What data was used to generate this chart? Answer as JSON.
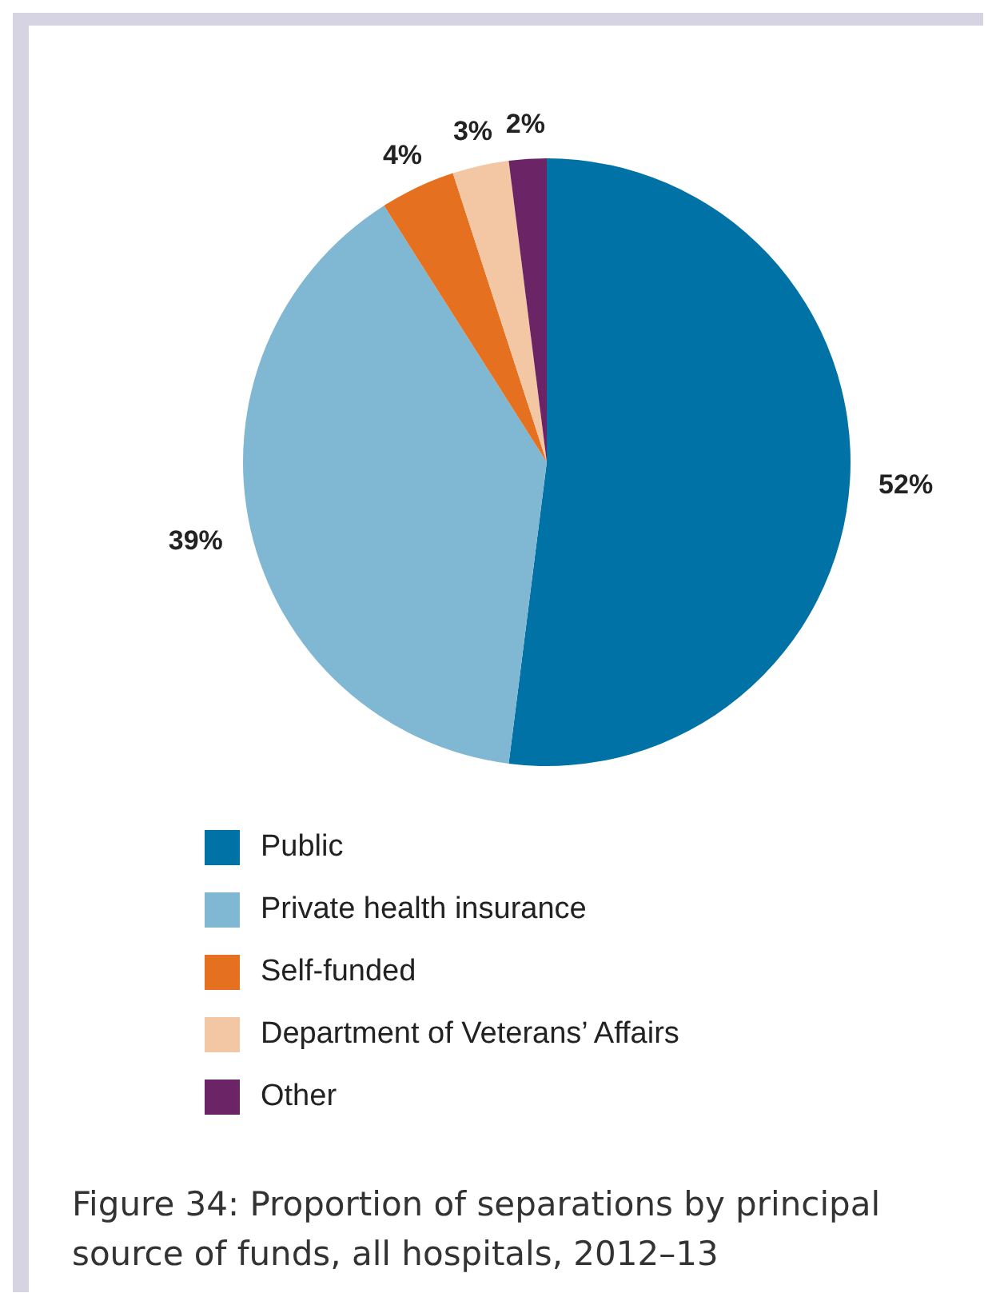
{
  "chart_data": {
    "type": "pie",
    "title": "Figure 34: Proportion of separations by principal source of funds, all hospitals, 2012–13",
    "categories": [
      "Public",
      "Private health insurance",
      "Self-funded",
      "Department of Veterans’ Affairs",
      "Other"
    ],
    "values": [
      52,
      39,
      4,
      3,
      2
    ],
    "colors": [
      "#0072a6",
      "#80b8d3",
      "#e57020",
      "#f4c7a4",
      "#6b2566"
    ],
    "value_labels": [
      "52%",
      "39%",
      "4%",
      "3%",
      "2%"
    ],
    "legend": "bottom"
  }
}
